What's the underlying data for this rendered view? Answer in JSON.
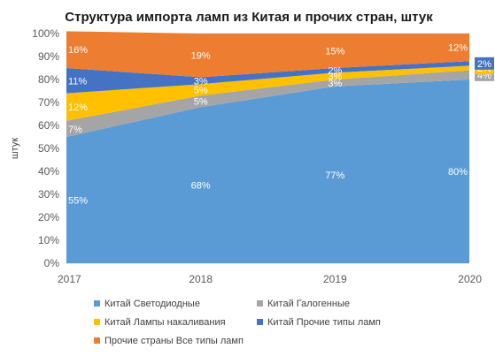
{
  "chart_data": {
    "type": "area",
    "stacked": "percent",
    "title": "Структура импорта ламп из Китая и прочих стран, штук",
    "ylabel": "штук",
    "xlabel": "",
    "ylim": [
      0,
      100
    ],
    "yticks": [
      "0%",
      "10%",
      "20%",
      "30%",
      "40%",
      "50%",
      "60%",
      "70%",
      "80%",
      "90%",
      "100%"
    ],
    "categories": [
      "2017",
      "2018",
      "2019",
      "2020"
    ],
    "series": [
      {
        "name": "Китай Светодиодные",
        "color": "#5b9bd5",
        "values": [
          55,
          68,
          77,
          80
        ],
        "labels": [
          "55%",
          "68%",
          "77%",
          "80%"
        ]
      },
      {
        "name": "Китай Галогенные",
        "color": "#a5a5a5",
        "values": [
          7,
          5,
          3,
          4
        ],
        "labels": [
          "7%",
          "5%",
          "3%",
          "4%"
        ]
      },
      {
        "name": "Китай Лампы накаливания",
        "color": "#ffc000",
        "values": [
          12,
          5,
          3,
          2
        ],
        "labels": [
          "12%",
          "5%",
          "3%",
          "2%"
        ]
      },
      {
        "name": "Китай Прочие типы ламп",
        "color": "#4472c4",
        "values": [
          11,
          3,
          2,
          2
        ],
        "labels": [
          "11%",
          "3%",
          "2%",
          "2%"
        ]
      },
      {
        "name": "Прочие страны Все типы ламп",
        "color": "#ed7d31",
        "values": [
          16,
          19,
          15,
          12
        ],
        "labels": [
          "16%",
          "19%",
          "15%",
          "12%"
        ]
      }
    ],
    "legend_position": "bottom",
    "grid": true
  }
}
